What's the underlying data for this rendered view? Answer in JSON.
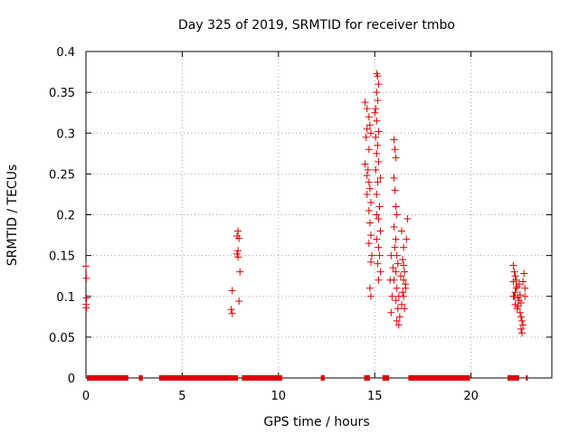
{
  "chart_data": {
    "type": "scatter",
    "title": "Day 325 of 2019, SRMTID for receiver tmbo",
    "xlabel": "GPS time / hours",
    "ylabel": "SRMTID / TECUs",
    "xlim": [
      0,
      24.2
    ],
    "ylim": [
      0,
      0.4
    ],
    "xticks": [
      0,
      5,
      10,
      15,
      20
    ],
    "xtick_labels": [
      "0",
      "5",
      "10",
      "15",
      "20"
    ],
    "yticks": [
      0,
      0.05,
      0.1,
      0.15,
      0.2,
      0.25,
      0.3,
      0.35,
      0.4
    ],
    "ytick_labels": [
      "0",
      "0.05",
      "0.1",
      "0.15",
      "0.2",
      "0.25",
      "0.3",
      "0.35",
      "0.4"
    ],
    "grid": true,
    "marker": "plus",
    "series": [
      {
        "name": "SRMTID",
        "color": "#dd0000",
        "points": [
          [
            0.0,
            0.137
          ],
          [
            0.02,
            0.122
          ],
          [
            0.03,
            0.098
          ],
          [
            0.01,
            0.09
          ],
          [
            0.02,
            0.086
          ],
          [
            7.6,
            0.107
          ],
          [
            7.55,
            0.084
          ],
          [
            7.6,
            0.079
          ],
          [
            7.9,
            0.18
          ],
          [
            7.85,
            0.174
          ],
          [
            7.95,
            0.171
          ],
          [
            7.9,
            0.156
          ],
          [
            7.85,
            0.152
          ],
          [
            7.9,
            0.148
          ],
          [
            8.0,
            0.13
          ],
          [
            7.95,
            0.094
          ],
          [
            14.5,
            0.338
          ],
          [
            14.6,
            0.33
          ],
          [
            14.7,
            0.32
          ],
          [
            14.75,
            0.31
          ],
          [
            14.6,
            0.305
          ],
          [
            14.8,
            0.3
          ],
          [
            14.55,
            0.295
          ],
          [
            14.7,
            0.28
          ],
          [
            14.5,
            0.262
          ],
          [
            14.65,
            0.255
          ],
          [
            14.6,
            0.248
          ],
          [
            14.7,
            0.24
          ],
          [
            14.75,
            0.232
          ],
          [
            14.6,
            0.225
          ],
          [
            14.8,
            0.215
          ],
          [
            14.7,
            0.205
          ],
          [
            14.75,
            0.19
          ],
          [
            14.8,
            0.175
          ],
          [
            14.7,
            0.165
          ],
          [
            14.85,
            0.15
          ],
          [
            14.8,
            0.142
          ],
          [
            14.75,
            0.11
          ],
          [
            14.8,
            0.1
          ],
          [
            15.1,
            0.373
          ],
          [
            15.15,
            0.37
          ],
          [
            15.2,
            0.36
          ],
          [
            15.1,
            0.35
          ],
          [
            15.15,
            0.34
          ],
          [
            15.05,
            0.33
          ],
          [
            15.0,
            0.325
          ],
          [
            15.1,
            0.315
          ],
          [
            15.2,
            0.302
          ],
          [
            15.05,
            0.295
          ],
          [
            15.15,
            0.285
          ],
          [
            15.1,
            0.275
          ],
          [
            15.2,
            0.265
          ],
          [
            15.05,
            0.255
          ],
          [
            15.15,
            0.24
          ],
          [
            15.1,
            0.225
          ],
          [
            15.25,
            0.21
          ],
          [
            15.2,
            0.195
          ],
          [
            15.3,
            0.18
          ],
          [
            15.1,
            0.17
          ],
          [
            15.2,
            0.16
          ],
          [
            15.25,
            0.15
          ],
          [
            15.15,
            0.14
          ],
          [
            15.3,
            0.13
          ],
          [
            15.2,
            0.12
          ],
          [
            15.1,
            0.2
          ],
          [
            15.3,
            0.245
          ],
          [
            16.0,
            0.292
          ],
          [
            16.05,
            0.28
          ],
          [
            16.1,
            0.27
          ],
          [
            16.0,
            0.245
          ],
          [
            16.05,
            0.23
          ],
          [
            16.1,
            0.21
          ],
          [
            16.15,
            0.2
          ],
          [
            16.0,
            0.185
          ],
          [
            16.1,
            0.17
          ],
          [
            16.05,
            0.16
          ],
          [
            16.15,
            0.15
          ],
          [
            16.2,
            0.14
          ],
          [
            16.1,
            0.13
          ],
          [
            16.0,
            0.12
          ],
          [
            16.15,
            0.11
          ],
          [
            16.25,
            0.1
          ],
          [
            16.1,
            0.095
          ],
          [
            16.2,
            0.085
          ],
          [
            16.3,
            0.075
          ],
          [
            16.15,
            0.07
          ],
          [
            16.25,
            0.065
          ],
          [
            15.85,
            0.08
          ],
          [
            15.9,
            0.1
          ],
          [
            15.8,
            0.12
          ],
          [
            15.95,
            0.135
          ],
          [
            15.85,
            0.15
          ],
          [
            16.4,
            0.18
          ],
          [
            16.5,
            0.16
          ],
          [
            16.45,
            0.145
          ],
          [
            16.55,
            0.13
          ],
          [
            16.5,
            0.12
          ],
          [
            16.6,
            0.11
          ],
          [
            16.5,
            0.1
          ],
          [
            16.4,
            0.09
          ],
          [
            16.55,
            0.085
          ],
          [
            16.6,
            0.115
          ],
          [
            16.45,
            0.105
          ],
          [
            16.7,
            0.195
          ],
          [
            16.65,
            0.17
          ],
          [
            16.5,
            0.138
          ],
          [
            16.35,
            0.125
          ],
          [
            22.2,
            0.138
          ],
          [
            22.25,
            0.13
          ],
          [
            22.3,
            0.125
          ],
          [
            22.35,
            0.12
          ],
          [
            22.2,
            0.118
          ],
          [
            22.4,
            0.112
          ],
          [
            22.3,
            0.105
          ],
          [
            22.25,
            0.1
          ],
          [
            22.45,
            0.098
          ],
          [
            22.5,
            0.095
          ],
          [
            22.3,
            0.09
          ],
          [
            22.4,
            0.085
          ],
          [
            22.55,
            0.08
          ],
          [
            22.6,
            0.075
          ],
          [
            22.65,
            0.07
          ],
          [
            22.7,
            0.065
          ],
          [
            22.6,
            0.06
          ],
          [
            22.65,
            0.055
          ],
          [
            22.35,
            0.11
          ],
          [
            22.5,
            0.115
          ],
          [
            22.75,
            0.128
          ],
          [
            22.7,
            0.118
          ],
          [
            22.8,
            0.11
          ],
          [
            22.55,
            0.102
          ],
          [
            22.45,
            0.088
          ],
          [
            22.6,
            0.092
          ],
          [
            22.2,
            0.1
          ],
          [
            22.8,
            0.1
          ]
        ]
      }
    ],
    "baseline_segments": [
      [
        0.05,
        2.2
      ],
      [
        2.75,
        2.95
      ],
      [
        3.8,
        7.9
      ],
      [
        8.1,
        10.2
      ],
      [
        12.2,
        12.4
      ],
      [
        14.45,
        14.75
      ],
      [
        15.4,
        15.75
      ],
      [
        16.75,
        19.95
      ],
      [
        21.9,
        22.5
      ],
      [
        22.85,
        22.95
      ]
    ]
  }
}
